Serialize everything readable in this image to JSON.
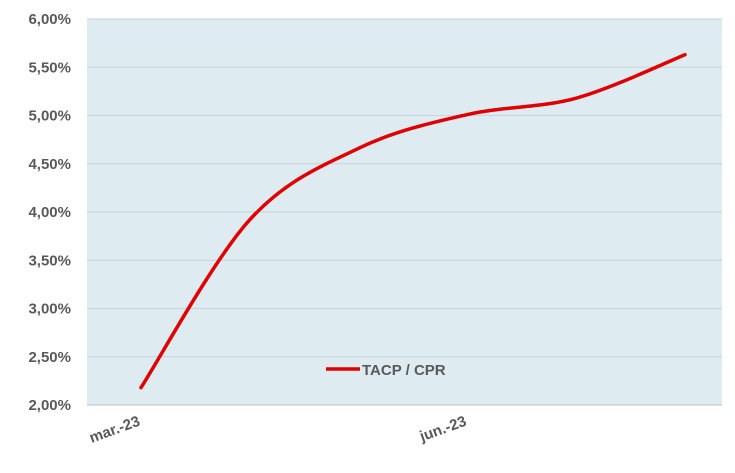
{
  "chart_data": {
    "type": "line",
    "categories": [
      "mar.-23",
      null,
      null,
      "jun.-23",
      null,
      null
    ],
    "series": [
      {
        "name": "TACP / CPR",
        "color": "#e00000",
        "values": [
          2.18,
          3.92,
          4.66,
          5.01,
          5.18,
          5.63
        ]
      }
    ],
    "ylim": [
      2,
      6
    ],
    "yticks": [
      {
        "value": 2,
        "label": "2,00%"
      },
      {
        "value": 2.5,
        "label": "2,50%"
      },
      {
        "value": 3,
        "label": "3,00%"
      },
      {
        "value": 3.5,
        "label": "3,50%"
      },
      {
        "value": 4,
        "label": "4,00%"
      },
      {
        "value": 4.5,
        "label": "4,50%"
      },
      {
        "value": 5,
        "label": "5,00%"
      },
      {
        "value": 5.5,
        "label": "5,50%"
      },
      {
        "value": 6,
        "label": "6,00%"
      }
    ],
    "grid": true,
    "legend": "bottom"
  }
}
